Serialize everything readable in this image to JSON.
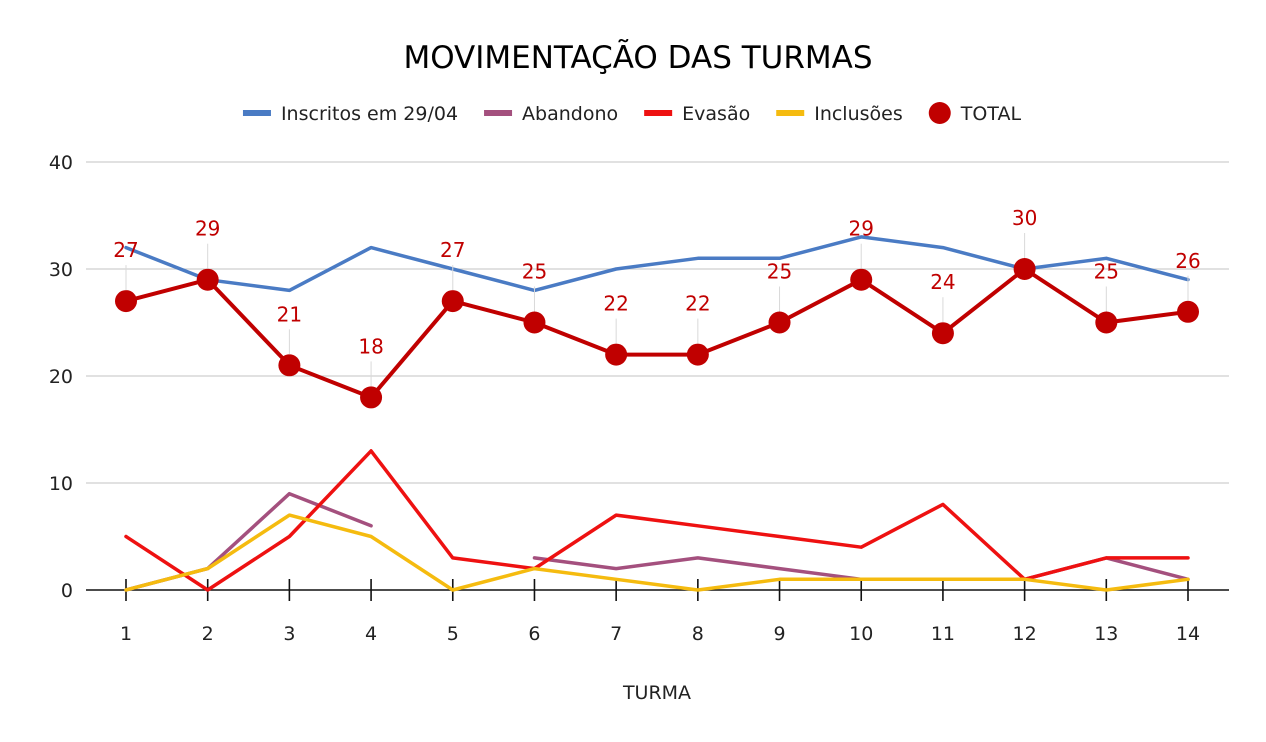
{
  "chart_data": {
    "type": "line",
    "title": "MOVIMENTAÇÃO DAS TURMAS",
    "xlabel": "TURMA",
    "ylabel": "",
    "ylim": [
      0,
      40
    ],
    "yticks": [
      0,
      10,
      20,
      30,
      40
    ],
    "grid": true,
    "legend_position": "top",
    "categories": [
      "1",
      "2",
      "3",
      "4",
      "5",
      "6",
      "7",
      "8",
      "9",
      "10",
      "11",
      "12",
      "13",
      "14"
    ],
    "series": [
      {
        "name": "Inscritos em 29/04",
        "color": "#4a7bc4",
        "marker": "none",
        "values": [
          32,
          29,
          28,
          32,
          30,
          28,
          30,
          31,
          31,
          33,
          32,
          30,
          31,
          29
        ]
      },
      {
        "name": "Abandono",
        "color": "#a4507e",
        "marker": "none",
        "values": [
          0,
          2,
          9,
          6,
          null,
          3,
          2,
          3,
          2,
          1,
          1,
          1,
          3,
          1
        ]
      },
      {
        "name": "Evasão",
        "color": "#ee1111",
        "marker": "none",
        "values": [
          5,
          0,
          5,
          13,
          3,
          2,
          7,
          6,
          5,
          4,
          8,
          1,
          3,
          3
        ]
      },
      {
        "name": "Inclusões",
        "color": "#f5bb0f",
        "marker": "none",
        "values": [
          0,
          2,
          7,
          5,
          0,
          2,
          1,
          0,
          1,
          1,
          1,
          1,
          0,
          1
        ]
      },
      {
        "name": "TOTAL",
        "color": "#c00000",
        "marker": "circle",
        "data_labels": true,
        "values": [
          27,
          29,
          21,
          18,
          27,
          25,
          22,
          22,
          25,
          29,
          24,
          30,
          25,
          26
        ]
      }
    ]
  }
}
